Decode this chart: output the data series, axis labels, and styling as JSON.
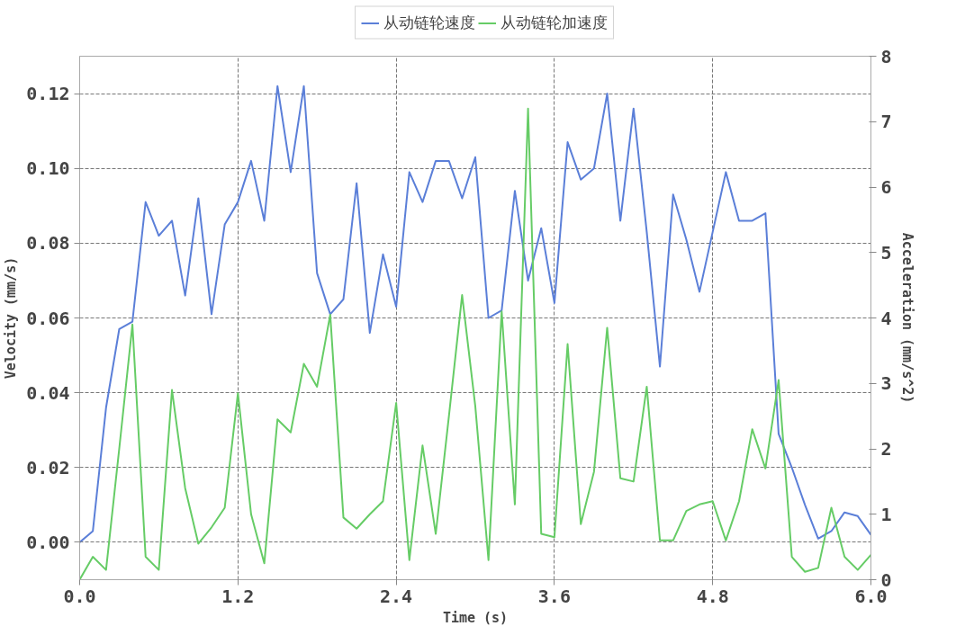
{
  "chart_data": {
    "type": "line",
    "xlabel": "Time (s)",
    "ylabel": "Velocity (mm/s)",
    "y2label": "Acceleration (mm/s^2)",
    "x": [
      0,
      0.1,
      0.2,
      0.3,
      0.4,
      0.5,
      0.6,
      0.7,
      0.8,
      0.9,
      1.0,
      1.1,
      1.2,
      1.3,
      1.4,
      1.5,
      1.6,
      1.7,
      1.8,
      1.9,
      2.0,
      2.1,
      2.2,
      2.3,
      2.4,
      2.5,
      2.6,
      2.7,
      2.8,
      2.9,
      3.0,
      3.1,
      3.2,
      3.3,
      3.4,
      3.5,
      3.6,
      3.7,
      3.8,
      3.9,
      4.0,
      4.1,
      4.2,
      4.3,
      4.4,
      4.5,
      4.6,
      4.7,
      4.8,
      4.9,
      5.0,
      5.1,
      5.2,
      5.3,
      5.4,
      5.5,
      5.6,
      5.7,
      5.8,
      5.9,
      6.0
    ],
    "series": [
      {
        "name": "从动链轮速度",
        "color": "#5b7fd8",
        "values": [
          0.0,
          0.003,
          0.036,
          0.057,
          0.059,
          0.091,
          0.082,
          0.086,
          0.066,
          0.092,
          0.061,
          0.085,
          0.091,
          0.102,
          0.086,
          0.122,
          0.099,
          0.122,
          0.072,
          0.061,
          0.065,
          0.096,
          0.056,
          0.077,
          0.063,
          0.099,
          0.091,
          0.102,
          0.102,
          0.092,
          0.103,
          0.06,
          0.062,
          0.094,
          0.07,
          0.084,
          0.064,
          0.107,
          0.097,
          0.1,
          0.12,
          0.086,
          0.116,
          0.083,
          0.047,
          0.093,
          0.081,
          0.067,
          0.083,
          0.099,
          0.086,
          0.086,
          0.088,
          0.029,
          0.02,
          0.01,
          0.001,
          0.003,
          0.008,
          0.007,
          0.002
        ]
      },
      {
        "name": "从动链轮加速度",
        "color": "#66cc66",
        "axis": "y2",
        "values": [
          0.0,
          0.35,
          0.15,
          2.0,
          3.9,
          0.35,
          0.15,
          2.9,
          1.4,
          0.55,
          0.8,
          1.1,
          2.85,
          1.0,
          0.25,
          2.45,
          2.25,
          3.3,
          2.95,
          4.05,
          0.95,
          0.78,
          1.0,
          1.2,
          2.7,
          0.3,
          2.05,
          0.7,
          2.5,
          4.35,
          2.65,
          0.3,
          4.1,
          1.15,
          7.2,
          0.7,
          0.65,
          3.6,
          0.85,
          1.65,
          3.85,
          1.55,
          1.5,
          2.95,
          0.6,
          0.6,
          1.05,
          1.15,
          1.2,
          0.6,
          1.2,
          2.3,
          1.7,
          3.05,
          0.35,
          0.12,
          0.18,
          1.1,
          0.35,
          0.15,
          0.38
        ]
      }
    ],
    "xlim": [
      0,
      6
    ],
    "xticks": [
      {
        "value": 0,
        "label": "0.0"
      },
      1.2,
      2.4,
      3.6,
      4.8,
      {
        "value": 6,
        "label": "6.0"
      }
    ],
    "ylim": [
      -0.01,
      0.13
    ],
    "yticks": [
      {
        "value": 0,
        "label": "0.00"
      },
      0.02,
      0.04,
      0.06,
      0.08,
      {
        "value": 0.1,
        "label": "0.10"
      },
      0.12
    ],
    "y2lim": [
      0,
      8
    ],
    "y2ticks": [
      0,
      1,
      2,
      3,
      4,
      5,
      6,
      7,
      8
    ],
    "grid": true,
    "legend": "top",
    "line_style": "solid"
  }
}
